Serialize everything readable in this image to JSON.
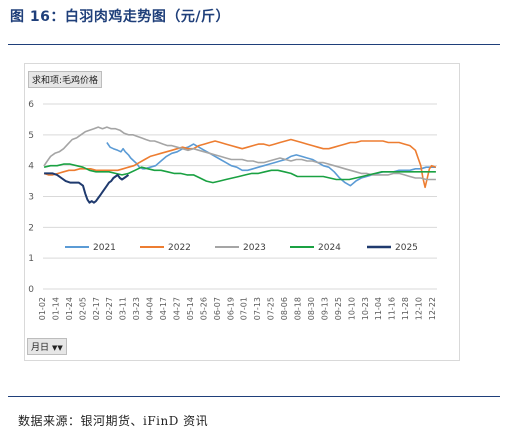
{
  "figure": {
    "title": "图 16：白羽肉鸡走势图（元/斤）",
    "source": "数据来源：银河期货、iFinD 资讯"
  },
  "pivot": {
    "top_field": "求和项:毛鸡价格",
    "bottom_field": "月日",
    "bottom_icon": "filter-dropdown-icon"
  },
  "colors": {
    "2021": "#5b9bd5",
    "2022": "#ed7d31",
    "2023": "#a5a5a5",
    "2024": "#1aa142",
    "2025": "#1f3a6e"
  },
  "chart_data": {
    "type": "line",
    "ylim": [
      0,
      6
    ],
    "yticks": [
      0,
      1,
      2,
      3,
      4,
      5,
      6
    ],
    "x_tick_labels": [
      "01-02",
      "01-14",
      "01-24",
      "02-05",
      "02-17",
      "02-27",
      "03-11",
      "03-23",
      "04-04",
      "04-17",
      "04-27",
      "05-14",
      "05-26",
      "06-07",
      "06-19",
      "07-01",
      "07-13",
      "07-25",
      "08-06",
      "08-18",
      "08-30",
      "09-13",
      "09-25",
      "10-10",
      "10-23",
      "11-04",
      "11-16",
      "11-28",
      "12-10",
      "12-22"
    ],
    "legend_position": "inside-bottom",
    "grid": true,
    "x_period": "day-of-year, Jan 2 – Dec 31",
    "series": [
      {
        "name": "2021",
        "points": [
          [
            60,
            4.75
          ],
          [
            63,
            4.6
          ],
          [
            66,
            4.55
          ],
          [
            70,
            4.5
          ],
          [
            73,
            4.45
          ],
          [
            75,
            4.55
          ],
          [
            77,
            4.45
          ],
          [
            80,
            4.35
          ],
          [
            82,
            4.25
          ],
          [
            85,
            4.15
          ],
          [
            88,
            4.05
          ],
          [
            90,
            3.95
          ],
          [
            93,
            3.9
          ],
          [
            95,
            3.9
          ],
          [
            100,
            3.95
          ],
          [
            105,
            4.0
          ],
          [
            110,
            4.15
          ],
          [
            115,
            4.3
          ],
          [
            120,
            4.4
          ],
          [
            125,
            4.45
          ],
          [
            130,
            4.55
          ],
          [
            135,
            4.6
          ],
          [
            140,
            4.7
          ],
          [
            145,
            4.6
          ],
          [
            150,
            4.5
          ],
          [
            155,
            4.4
          ],
          [
            160,
            4.3
          ],
          [
            165,
            4.2
          ],
          [
            170,
            4.1
          ],
          [
            175,
            4.0
          ],
          [
            180,
            3.95
          ],
          [
            185,
            3.85
          ],
          [
            190,
            3.85
          ],
          [
            195,
            3.9
          ],
          [
            200,
            3.95
          ],
          [
            205,
            4.0
          ],
          [
            210,
            4.05
          ],
          [
            215,
            4.1
          ],
          [
            220,
            4.15
          ],
          [
            225,
            4.2
          ],
          [
            230,
            4.3
          ],
          [
            235,
            4.35
          ],
          [
            240,
            4.3
          ],
          [
            245,
            4.25
          ],
          [
            250,
            4.2
          ],
          [
            255,
            4.1
          ],
          [
            260,
            4.0
          ],
          [
            265,
            3.95
          ],
          [
            270,
            3.8
          ],
          [
            275,
            3.6
          ],
          [
            280,
            3.45
          ],
          [
            285,
            3.35
          ],
          [
            290,
            3.5
          ],
          [
            295,
            3.6
          ],
          [
            300,
            3.65
          ],
          [
            305,
            3.7
          ],
          [
            310,
            3.75
          ],
          [
            315,
            3.8
          ],
          [
            320,
            3.8
          ],
          [
            325,
            3.8
          ],
          [
            330,
            3.85
          ],
          [
            335,
            3.85
          ],
          [
            340,
            3.85
          ],
          [
            345,
            3.9
          ],
          [
            350,
            3.9
          ],
          [
            355,
            3.95
          ],
          [
            360,
            3.95
          ],
          [
            364,
            3.95
          ]
        ]
      },
      {
        "name": "2022",
        "points": [
          [
            2,
            3.75
          ],
          [
            6,
            3.7
          ],
          [
            10,
            3.7
          ],
          [
            15,
            3.75
          ],
          [
            20,
            3.8
          ],
          [
            25,
            3.85
          ],
          [
            30,
            3.85
          ],
          [
            35,
            3.9
          ],
          [
            40,
            3.9
          ],
          [
            45,
            3.9
          ],
          [
            50,
            3.85
          ],
          [
            55,
            3.85
          ],
          [
            60,
            3.85
          ],
          [
            65,
            3.85
          ],
          [
            70,
            3.85
          ],
          [
            75,
            3.9
          ],
          [
            80,
            3.95
          ],
          [
            85,
            4.0
          ],
          [
            90,
            4.1
          ],
          [
            95,
            4.2
          ],
          [
            100,
            4.3
          ],
          [
            105,
            4.35
          ],
          [
            110,
            4.4
          ],
          [
            115,
            4.45
          ],
          [
            120,
            4.5
          ],
          [
            125,
            4.55
          ],
          [
            130,
            4.6
          ],
          [
            135,
            4.55
          ],
          [
            140,
            4.55
          ],
          [
            145,
            4.65
          ],
          [
            150,
            4.7
          ],
          [
            155,
            4.75
          ],
          [
            160,
            4.8
          ],
          [
            165,
            4.75
          ],
          [
            170,
            4.7
          ],
          [
            175,
            4.65
          ],
          [
            180,
            4.6
          ],
          [
            185,
            4.55
          ],
          [
            190,
            4.6
          ],
          [
            195,
            4.65
          ],
          [
            200,
            4.7
          ],
          [
            205,
            4.7
          ],
          [
            210,
            4.65
          ],
          [
            215,
            4.7
          ],
          [
            220,
            4.75
          ],
          [
            225,
            4.8
          ],
          [
            230,
            4.85
          ],
          [
            235,
            4.8
          ],
          [
            240,
            4.75
          ],
          [
            245,
            4.7
          ],
          [
            250,
            4.65
          ],
          [
            255,
            4.6
          ],
          [
            260,
            4.55
          ],
          [
            265,
            4.55
          ],
          [
            270,
            4.6
          ],
          [
            275,
            4.65
          ],
          [
            280,
            4.7
          ],
          [
            285,
            4.75
          ],
          [
            290,
            4.75
          ],
          [
            295,
            4.8
          ],
          [
            300,
            4.8
          ],
          [
            305,
            4.8
          ],
          [
            310,
            4.8
          ],
          [
            315,
            4.8
          ],
          [
            320,
            4.75
          ],
          [
            325,
            4.75
          ],
          [
            330,
            4.75
          ],
          [
            335,
            4.7
          ],
          [
            340,
            4.65
          ],
          [
            345,
            4.5
          ],
          [
            348,
            4.2
          ],
          [
            350,
            4.0
          ],
          [
            352,
            3.6
          ],
          [
            354,
            3.3
          ],
          [
            356,
            3.6
          ],
          [
            358,
            3.9
          ],
          [
            360,
            4.0
          ],
          [
            364,
            3.95
          ]
        ]
      },
      {
        "name": "2023",
        "points": [
          [
            2,
            4.0
          ],
          [
            5,
            4.15
          ],
          [
            8,
            4.3
          ],
          [
            12,
            4.4
          ],
          [
            16,
            4.45
          ],
          [
            20,
            4.55
          ],
          [
            24,
            4.7
          ],
          [
            28,
            4.85
          ],
          [
            32,
            4.9
          ],
          [
            36,
            5.0
          ],
          [
            40,
            5.1
          ],
          [
            44,
            5.15
          ],
          [
            48,
            5.2
          ],
          [
            52,
            5.25
          ],
          [
            56,
            5.2
          ],
          [
            60,
            5.25
          ],
          [
            64,
            5.2
          ],
          [
            68,
            5.2
          ],
          [
            72,
            5.15
          ],
          [
            76,
            5.05
          ],
          [
            80,
            5.0
          ],
          [
            84,
            5.0
          ],
          [
            88,
            4.95
          ],
          [
            92,
            4.9
          ],
          [
            96,
            4.85
          ],
          [
            100,
            4.8
          ],
          [
            104,
            4.8
          ],
          [
            108,
            4.75
          ],
          [
            112,
            4.7
          ],
          [
            116,
            4.65
          ],
          [
            120,
            4.65
          ],
          [
            125,
            4.6
          ],
          [
            130,
            4.55
          ],
          [
            135,
            4.5
          ],
          [
            140,
            4.55
          ],
          [
            145,
            4.5
          ],
          [
            150,
            4.45
          ],
          [
            155,
            4.4
          ],
          [
            160,
            4.35
          ],
          [
            165,
            4.3
          ],
          [
            170,
            4.25
          ],
          [
            175,
            4.2
          ],
          [
            180,
            4.2
          ],
          [
            185,
            4.2
          ],
          [
            190,
            4.15
          ],
          [
            195,
            4.15
          ],
          [
            200,
            4.1
          ],
          [
            205,
            4.1
          ],
          [
            210,
            4.15
          ],
          [
            215,
            4.2
          ],
          [
            220,
            4.25
          ],
          [
            225,
            4.2
          ],
          [
            230,
            4.15
          ],
          [
            235,
            4.2
          ],
          [
            240,
            4.2
          ],
          [
            245,
            4.15
          ],
          [
            250,
            4.15
          ],
          [
            255,
            4.1
          ],
          [
            260,
            4.1
          ],
          [
            265,
            4.05
          ],
          [
            270,
            4.0
          ],
          [
            275,
            3.95
          ],
          [
            280,
            3.9
          ],
          [
            285,
            3.85
          ],
          [
            290,
            3.8
          ],
          [
            295,
            3.75
          ],
          [
            300,
            3.75
          ],
          [
            305,
            3.7
          ],
          [
            310,
            3.7
          ],
          [
            315,
            3.7
          ],
          [
            320,
            3.7
          ],
          [
            325,
            3.75
          ],
          [
            330,
            3.75
          ],
          [
            335,
            3.7
          ],
          [
            340,
            3.65
          ],
          [
            345,
            3.6
          ],
          [
            350,
            3.6
          ],
          [
            355,
            3.55
          ],
          [
            360,
            3.55
          ],
          [
            364,
            3.55
          ]
        ]
      },
      {
        "name": "2024",
        "points": [
          [
            2,
            3.95
          ],
          [
            8,
            4.0
          ],
          [
            14,
            4.0
          ],
          [
            20,
            4.05
          ],
          [
            26,
            4.05
          ],
          [
            32,
            4.0
          ],
          [
            38,
            3.95
          ],
          [
            44,
            3.85
          ],
          [
            50,
            3.8
          ],
          [
            56,
            3.8
          ],
          [
            62,
            3.8
          ],
          [
            68,
            3.75
          ],
          [
            74,
            3.7
          ],
          [
            80,
            3.75
          ],
          [
            86,
            3.85
          ],
          [
            92,
            3.95
          ],
          [
            98,
            3.9
          ],
          [
            104,
            3.85
          ],
          [
            110,
            3.85
          ],
          [
            116,
            3.8
          ],
          [
            122,
            3.75
          ],
          [
            128,
            3.75
          ],
          [
            134,
            3.7
          ],
          [
            140,
            3.7
          ],
          [
            146,
            3.6
          ],
          [
            152,
            3.5
          ],
          [
            158,
            3.45
          ],
          [
            164,
            3.5
          ],
          [
            170,
            3.55
          ],
          [
            176,
            3.6
          ],
          [
            182,
            3.65
          ],
          [
            188,
            3.7
          ],
          [
            194,
            3.75
          ],
          [
            200,
            3.75
          ],
          [
            206,
            3.8
          ],
          [
            212,
            3.85
          ],
          [
            218,
            3.85
          ],
          [
            224,
            3.8
          ],
          [
            230,
            3.75
          ],
          [
            236,
            3.65
          ],
          [
            242,
            3.65
          ],
          [
            248,
            3.65
          ],
          [
            254,
            3.65
          ],
          [
            260,
            3.65
          ],
          [
            266,
            3.6
          ],
          [
            272,
            3.55
          ],
          [
            278,
            3.55
          ],
          [
            284,
            3.55
          ],
          [
            290,
            3.6
          ],
          [
            296,
            3.65
          ],
          [
            302,
            3.7
          ],
          [
            308,
            3.75
          ],
          [
            314,
            3.8
          ],
          [
            320,
            3.8
          ],
          [
            326,
            3.8
          ],
          [
            332,
            3.8
          ],
          [
            338,
            3.8
          ],
          [
            344,
            3.8
          ],
          [
            350,
            3.8
          ],
          [
            356,
            3.8
          ],
          [
            364,
            3.8
          ]
        ]
      },
      {
        "name": "2025",
        "points": [
          [
            2,
            3.75
          ],
          [
            6,
            3.75
          ],
          [
            10,
            3.75
          ],
          [
            14,
            3.7
          ],
          [
            18,
            3.6
          ],
          [
            22,
            3.5
          ],
          [
            26,
            3.45
          ],
          [
            30,
            3.45
          ],
          [
            34,
            3.45
          ],
          [
            38,
            3.35
          ],
          [
            40,
            3.1
          ],
          [
            42,
            2.9
          ],
          [
            44,
            2.8
          ],
          [
            46,
            2.85
          ],
          [
            48,
            2.8
          ],
          [
            50,
            2.85
          ],
          [
            52,
            2.95
          ],
          [
            54,
            3.05
          ],
          [
            56,
            3.15
          ],
          [
            58,
            3.25
          ],
          [
            60,
            3.35
          ],
          [
            62,
            3.45
          ],
          [
            64,
            3.5
          ],
          [
            66,
            3.6
          ],
          [
            68,
            3.65
          ],
          [
            70,
            3.7
          ],
          [
            72,
            3.6
          ],
          [
            74,
            3.55
          ],
          [
            76,
            3.6
          ],
          [
            78,
            3.65
          ],
          [
            80,
            3.7
          ]
        ]
      }
    ]
  }
}
